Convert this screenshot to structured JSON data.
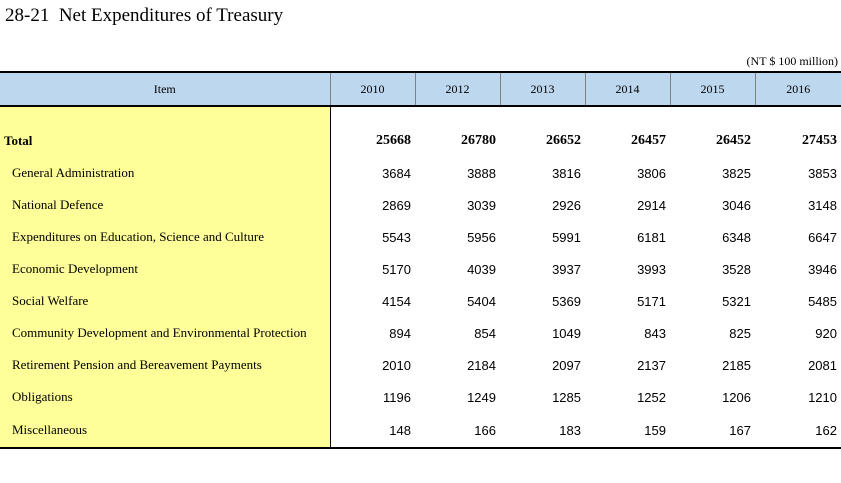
{
  "title": "28-21  Net Expenditures of Treasury",
  "unit": "(NT $ 100 million)",
  "header": {
    "item": "Item",
    "years": [
      "2010",
      "2012",
      "2013",
      "2014",
      "2015",
      "2016"
    ]
  },
  "total": {
    "label": "Total",
    "values": [
      "25668",
      "26780",
      "26652",
      "26457",
      "26452",
      "27453"
    ]
  },
  "rows": [
    {
      "label": "General Administration",
      "values": [
        "3684",
        "3888",
        "3816",
        "3806",
        "3825",
        "3853"
      ]
    },
    {
      "label": "National Defence",
      "values": [
        "2869",
        "3039",
        "2926",
        "2914",
        "3046",
        "3148"
      ]
    },
    {
      "label": "Expenditures on Education, Science and Culture",
      "values": [
        "5543",
        "5956",
        "5991",
        "6181",
        "6348",
        "6647"
      ]
    },
    {
      "label": "Economic Development",
      "values": [
        "5170",
        "4039",
        "3937",
        "3993",
        "3528",
        "3946"
      ]
    },
    {
      "label": "Social Welfare",
      "values": [
        "4154",
        "5404",
        "5369",
        "5171",
        "5321",
        "5485"
      ]
    },
    {
      "label": "Community Development and Environmental Protection",
      "values": [
        "894",
        "854",
        "1049",
        "843",
        "825",
        "920"
      ]
    },
    {
      "label": "Retirement Pension and Bereavement Payments",
      "values": [
        "2010",
        "2184",
        "2097",
        "2137",
        "2185",
        "2081"
      ]
    },
    {
      "label": "Obligations",
      "values": [
        "1196",
        "1249",
        "1285",
        "1252",
        "1206",
        "1210"
      ]
    },
    {
      "label": "Miscellaneous",
      "values": [
        "148",
        "166",
        "183",
        "159",
        "167",
        "162"
      ]
    }
  ]
}
